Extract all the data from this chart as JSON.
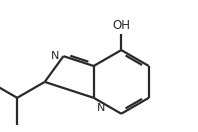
{
  "background": "#ffffff",
  "line_color": "#2a2a2a",
  "line_width": 1.6,
  "text_color": "#2a2a2a",
  "font_size_N": 8.0,
  "font_size_OH": 8.5,
  "xlim": [
    0.2,
    5.8
  ],
  "ylim": [
    0.1,
    3.8
  ],
  "BL": 0.9,
  "N_j": [
    2.85,
    1.05
  ],
  "iPr_C_dir_deg": 210,
  "Me1_dir_deg": 150,
  "Me2_dir_deg": 270,
  "Me_scale": 0.85
}
